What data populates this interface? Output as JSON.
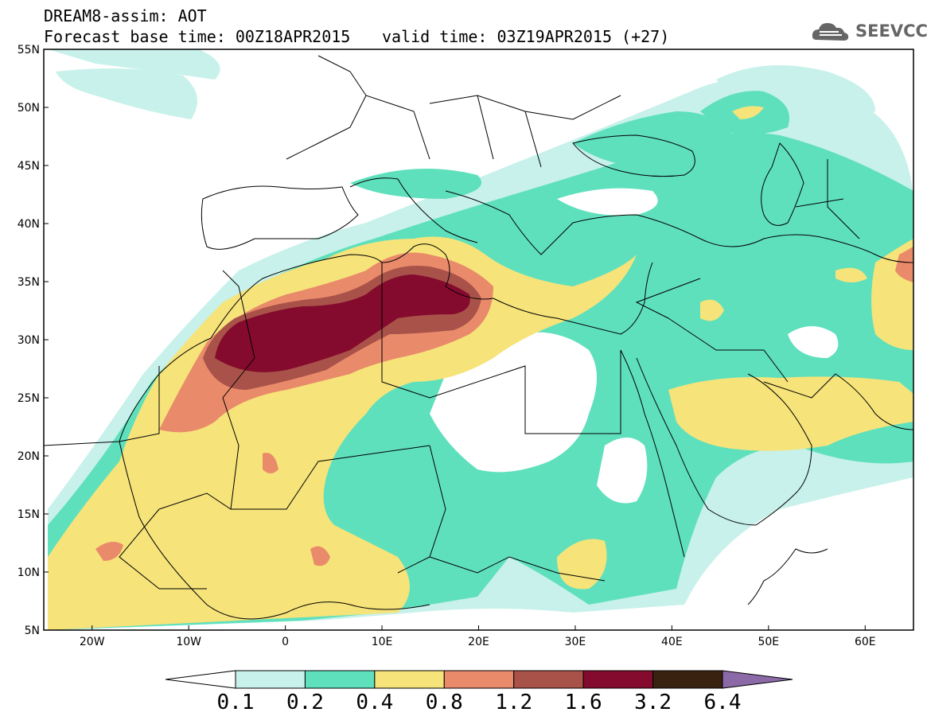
{
  "header": {
    "line1": "DREAM8-assim: AOT",
    "line2": "Forecast base time: 00Z18APR2015",
    "valid": "valid time: 03Z19APR2015 (+27)",
    "logo_text": "SEEVCCC"
  },
  "axes": {
    "lon_labels": [
      "20W",
      "10W",
      "0",
      "10E",
      "20E",
      "30E",
      "40E",
      "50E",
      "60E"
    ],
    "lat_labels": [
      "55N",
      "50N",
      "45N",
      "40N",
      "35N",
      "30N",
      "25N",
      "20N",
      "15N",
      "10N",
      "5N"
    ],
    "lon_range": [
      -25,
      65
    ],
    "lat_range": [
      5,
      55
    ]
  },
  "colorbar": {
    "labels": [
      "0.1",
      "0.2",
      "0.4",
      "0.8",
      "1.2",
      "1.6",
      "3.2",
      "6.4"
    ],
    "colors": [
      "#ffffff",
      "#c7f1ea",
      "#5fe0bd",
      "#f6e37a",
      "#e98a6a",
      "#a9524a",
      "#840b2d",
      "#3a2210",
      "#8c6aa8"
    ]
  }
}
